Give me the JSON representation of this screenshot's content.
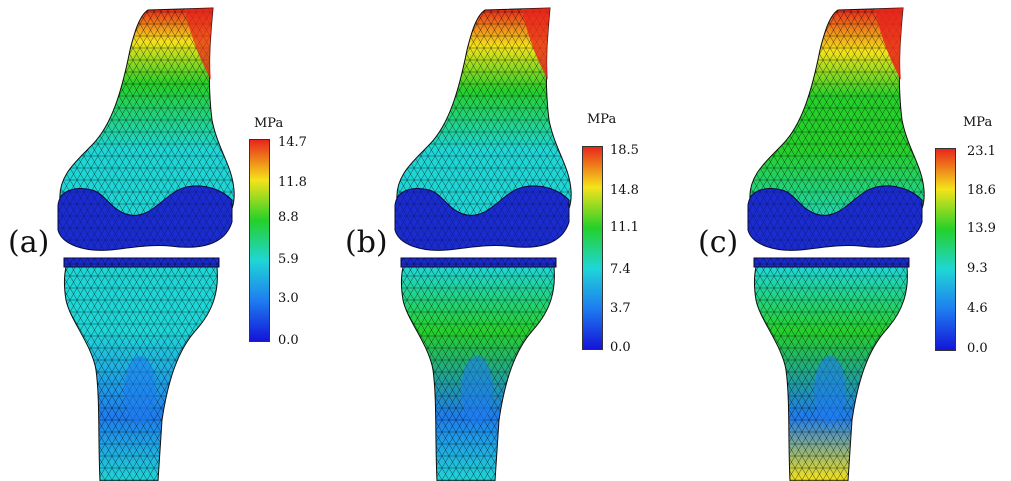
{
  "figure": {
    "colors": {
      "scale_top": "#e8261c",
      "scale_upper": "#f5e31a",
      "scale_mid": "#25d02a",
      "scale_lower": "#1fd6d6",
      "scale_low2": "#1e7cf0",
      "scale_bottom": "#1414d8",
      "mesh_line": "#000000",
      "meniscus": "#1a2cd0"
    },
    "panels": [
      {
        "label": "(a)",
        "unit": "MPa",
        "ticks": [
          "14.7",
          "11.8",
          "8.8",
          "5.9",
          "3.0",
          "0.0"
        ],
        "max": 14.7,
        "stress_level": 0.55
      },
      {
        "label": "(b)",
        "unit": "MPa",
        "ticks": [
          "18.5",
          "14.8",
          "11.1",
          "7.4",
          "3.7",
          "0.0"
        ],
        "max": 18.5,
        "stress_level": 0.72
      },
      {
        "label": "(c)",
        "unit": "MPa",
        "ticks": [
          "23.1",
          "18.6",
          "13.9",
          "9.3",
          "4.6",
          "0.0"
        ],
        "max": 23.1,
        "stress_level": 0.9
      }
    ]
  }
}
